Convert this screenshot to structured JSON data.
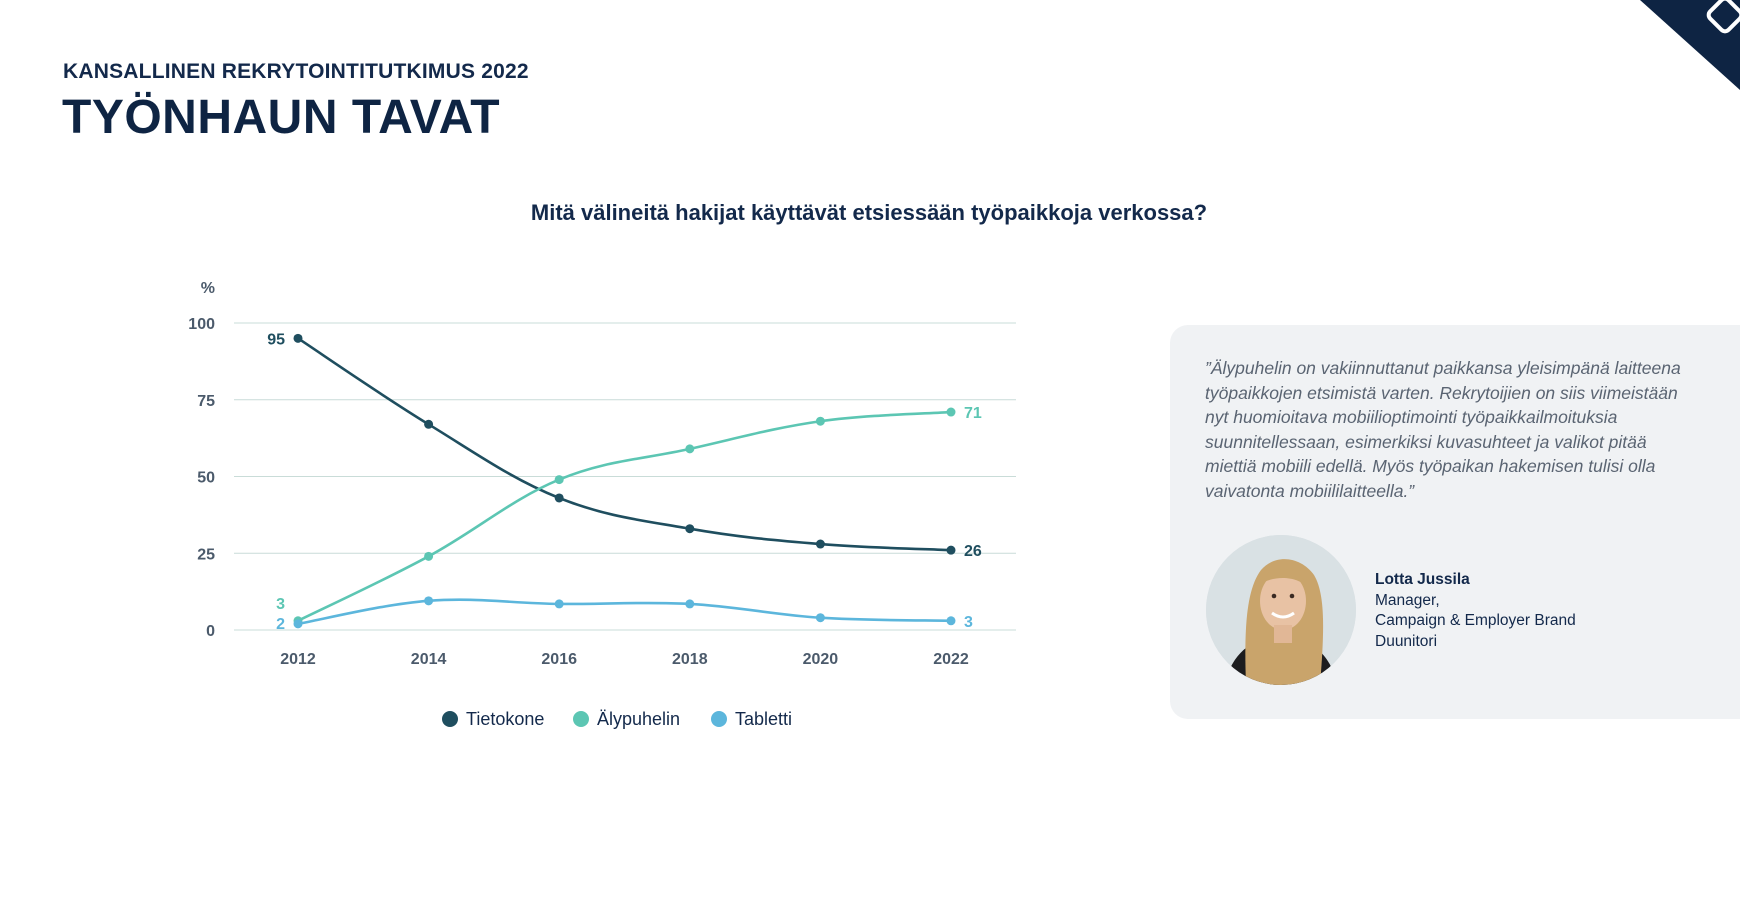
{
  "header": {
    "kicker": "KANSALLINEN REKRYTOINTITUTKIMUS 2022",
    "title": "TYÖNHAUN TAVAT"
  },
  "chart_data": {
    "type": "line",
    "title": "Mitä välineitä hakijat käyttävät etsiessään työpaikkoja verkossa?",
    "ylabel": "%",
    "xlabel": "",
    "x": [
      "2012",
      "2014",
      "2016",
      "2018",
      "2020",
      "2022"
    ],
    "ylim": [
      0,
      100
    ],
    "yticks": [
      0,
      25,
      50,
      75,
      100
    ],
    "grid": true,
    "legend_position": "bottom",
    "series": [
      {
        "name": "Tietokone",
        "color": "#1f4e5f",
        "values": [
          95,
          67,
          43,
          33,
          28,
          26
        ],
        "labels": {
          "0": "95",
          "5": "26"
        }
      },
      {
        "name": "Älypuhelin",
        "color": "#5cc6b3",
        "values": [
          3,
          24,
          49,
          59,
          68,
          71
        ],
        "labels": {
          "0": "3",
          "5": "71"
        }
      },
      {
        "name": "Tabletti",
        "color": "#5cb6dc",
        "values": [
          2,
          9.5,
          8.5,
          8.5,
          4,
          3
        ],
        "labels": {
          "0": "2",
          "5": "3"
        }
      }
    ]
  },
  "quote": {
    "text": "”Älypuhelin on vakiinnuttanut paikkansa yleisimpänä laitteena työpaikkojen etsimistä varten. Rekrytoijien on siis viimeistään nyt huomioitava mobiilioptimointi työpaikkailmoituksia suunnitellessaan, esimerkiksi kuvasuhteet ja valikot pitää miettiä mobiili edellä. Myös työpaikan hakemisen tulisi olla vaivatonta mobiililaitteella.”",
    "person_name": "Lotta Jussila",
    "person_role": "Manager,",
    "person_team": "Campaign & Employer Brand",
    "person_company": "Duunitori"
  },
  "colors": {
    "navy": "#0e2443",
    "grid": "#c9dcd8",
    "axis_text": "#4b5a6b"
  }
}
